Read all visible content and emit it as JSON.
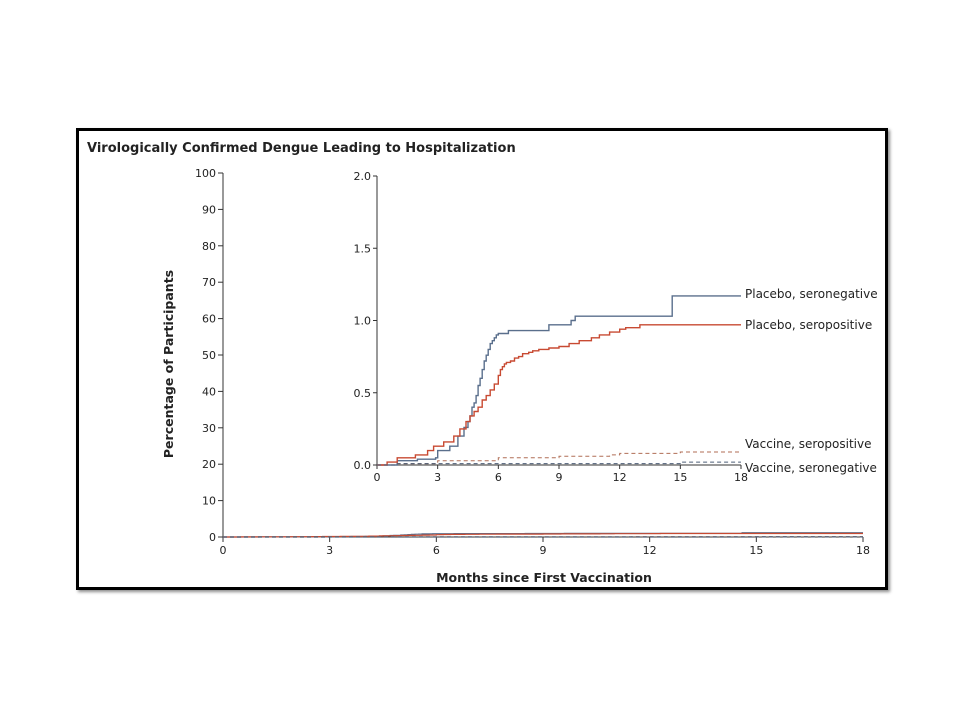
{
  "chart_data": {
    "type": "line",
    "title": "Virologically Confirmed Dengue Leading to Hospitalization",
    "xlabel": "Months since First Vaccination",
    "ylabel": "Percentage of Participants",
    "main_axes": {
      "xlim": [
        0,
        18
      ],
      "ylim": [
        0,
        100
      ],
      "xticks": [
        "0",
        "3",
        "6",
        "9",
        "12",
        "15",
        "18"
      ],
      "yticks": [
        "0",
        "10",
        "20",
        "30",
        "40",
        "50",
        "60",
        "70",
        "80",
        "90",
        "100"
      ]
    },
    "inset_axes": {
      "xlim": [
        0,
        18
      ],
      "ylim": [
        0,
        2.0
      ],
      "xticks": [
        "0",
        "3",
        "6",
        "9",
        "12",
        "15",
        "18"
      ],
      "yticks": [
        "0.0",
        "0.5",
        "1.0",
        "1.5",
        "2.0"
      ]
    },
    "series": [
      {
        "name": "Placebo, seronegative",
        "color": "#5a6f8c",
        "style": "solid",
        "x": [
          0,
          1.0,
          2.0,
          2.9,
          3.0,
          3.6,
          4.0,
          4.3,
          4.5,
          4.6,
          4.7,
          4.8,
          4.9,
          5.0,
          5.1,
          5.2,
          5.3,
          5.4,
          5.5,
          5.6,
          5.7,
          5.8,
          5.9,
          6.0,
          6.2,
          6.5,
          8.3,
          8.5,
          8.6,
          9.0,
          9.6,
          9.8,
          14.6,
          18.0
        ],
        "y": [
          0,
          0.03,
          0.04,
          0.05,
          0.1,
          0.13,
          0.2,
          0.26,
          0.3,
          0.34,
          0.4,
          0.43,
          0.48,
          0.55,
          0.6,
          0.66,
          0.72,
          0.76,
          0.8,
          0.84,
          0.86,
          0.88,
          0.9,
          0.91,
          0.91,
          0.93,
          0.93,
          0.97,
          0.97,
          0.97,
          1.0,
          1.03,
          1.17,
          1.17
        ]
      },
      {
        "name": "Placebo, seropositive",
        "color": "#c84a32",
        "style": "solid",
        "x": [
          0,
          0.5,
          1.0,
          1.9,
          2.5,
          2.8,
          3.3,
          3.8,
          4.1,
          4.4,
          4.6,
          4.8,
          5.0,
          5.2,
          5.4,
          5.6,
          5.8,
          6.0,
          6.1,
          6.2,
          6.3,
          6.4,
          6.6,
          6.8,
          7.0,
          7.2,
          7.5,
          7.7,
          8.0,
          8.5,
          9.0,
          9.5,
          10.0,
          10.6,
          11.0,
          11.5,
          12.0,
          12.3,
          13.0,
          18.0
        ],
        "y": [
          0,
          0.02,
          0.05,
          0.07,
          0.1,
          0.13,
          0.16,
          0.2,
          0.25,
          0.3,
          0.34,
          0.37,
          0.4,
          0.45,
          0.48,
          0.52,
          0.56,
          0.62,
          0.66,
          0.68,
          0.7,
          0.71,
          0.72,
          0.74,
          0.75,
          0.77,
          0.78,
          0.79,
          0.8,
          0.81,
          0.82,
          0.84,
          0.86,
          0.88,
          0.9,
          0.92,
          0.94,
          0.95,
          0.97,
          0.97
        ]
      },
      {
        "name": "Vaccine, seropositive",
        "color": "#b06e56",
        "style": "dashed",
        "x": [
          0,
          1.0,
          2.9,
          3.0,
          6.0,
          9.0,
          11.5,
          12.0,
          14.0,
          15.0,
          18.0
        ],
        "y": [
          0,
          0.01,
          0.02,
          0.03,
          0.05,
          0.06,
          0.07,
          0.08,
          0.08,
          0.09,
          0.09
        ]
      },
      {
        "name": "Vaccine, seronegative",
        "color": "#4e5f78",
        "style": "dashed",
        "x": [
          0,
          1.0,
          2.0,
          14.5,
          15.0,
          18.0
        ],
        "y": [
          0,
          0.01,
          0.01,
          0.01,
          0.02,
          0.02
        ]
      }
    ]
  }
}
